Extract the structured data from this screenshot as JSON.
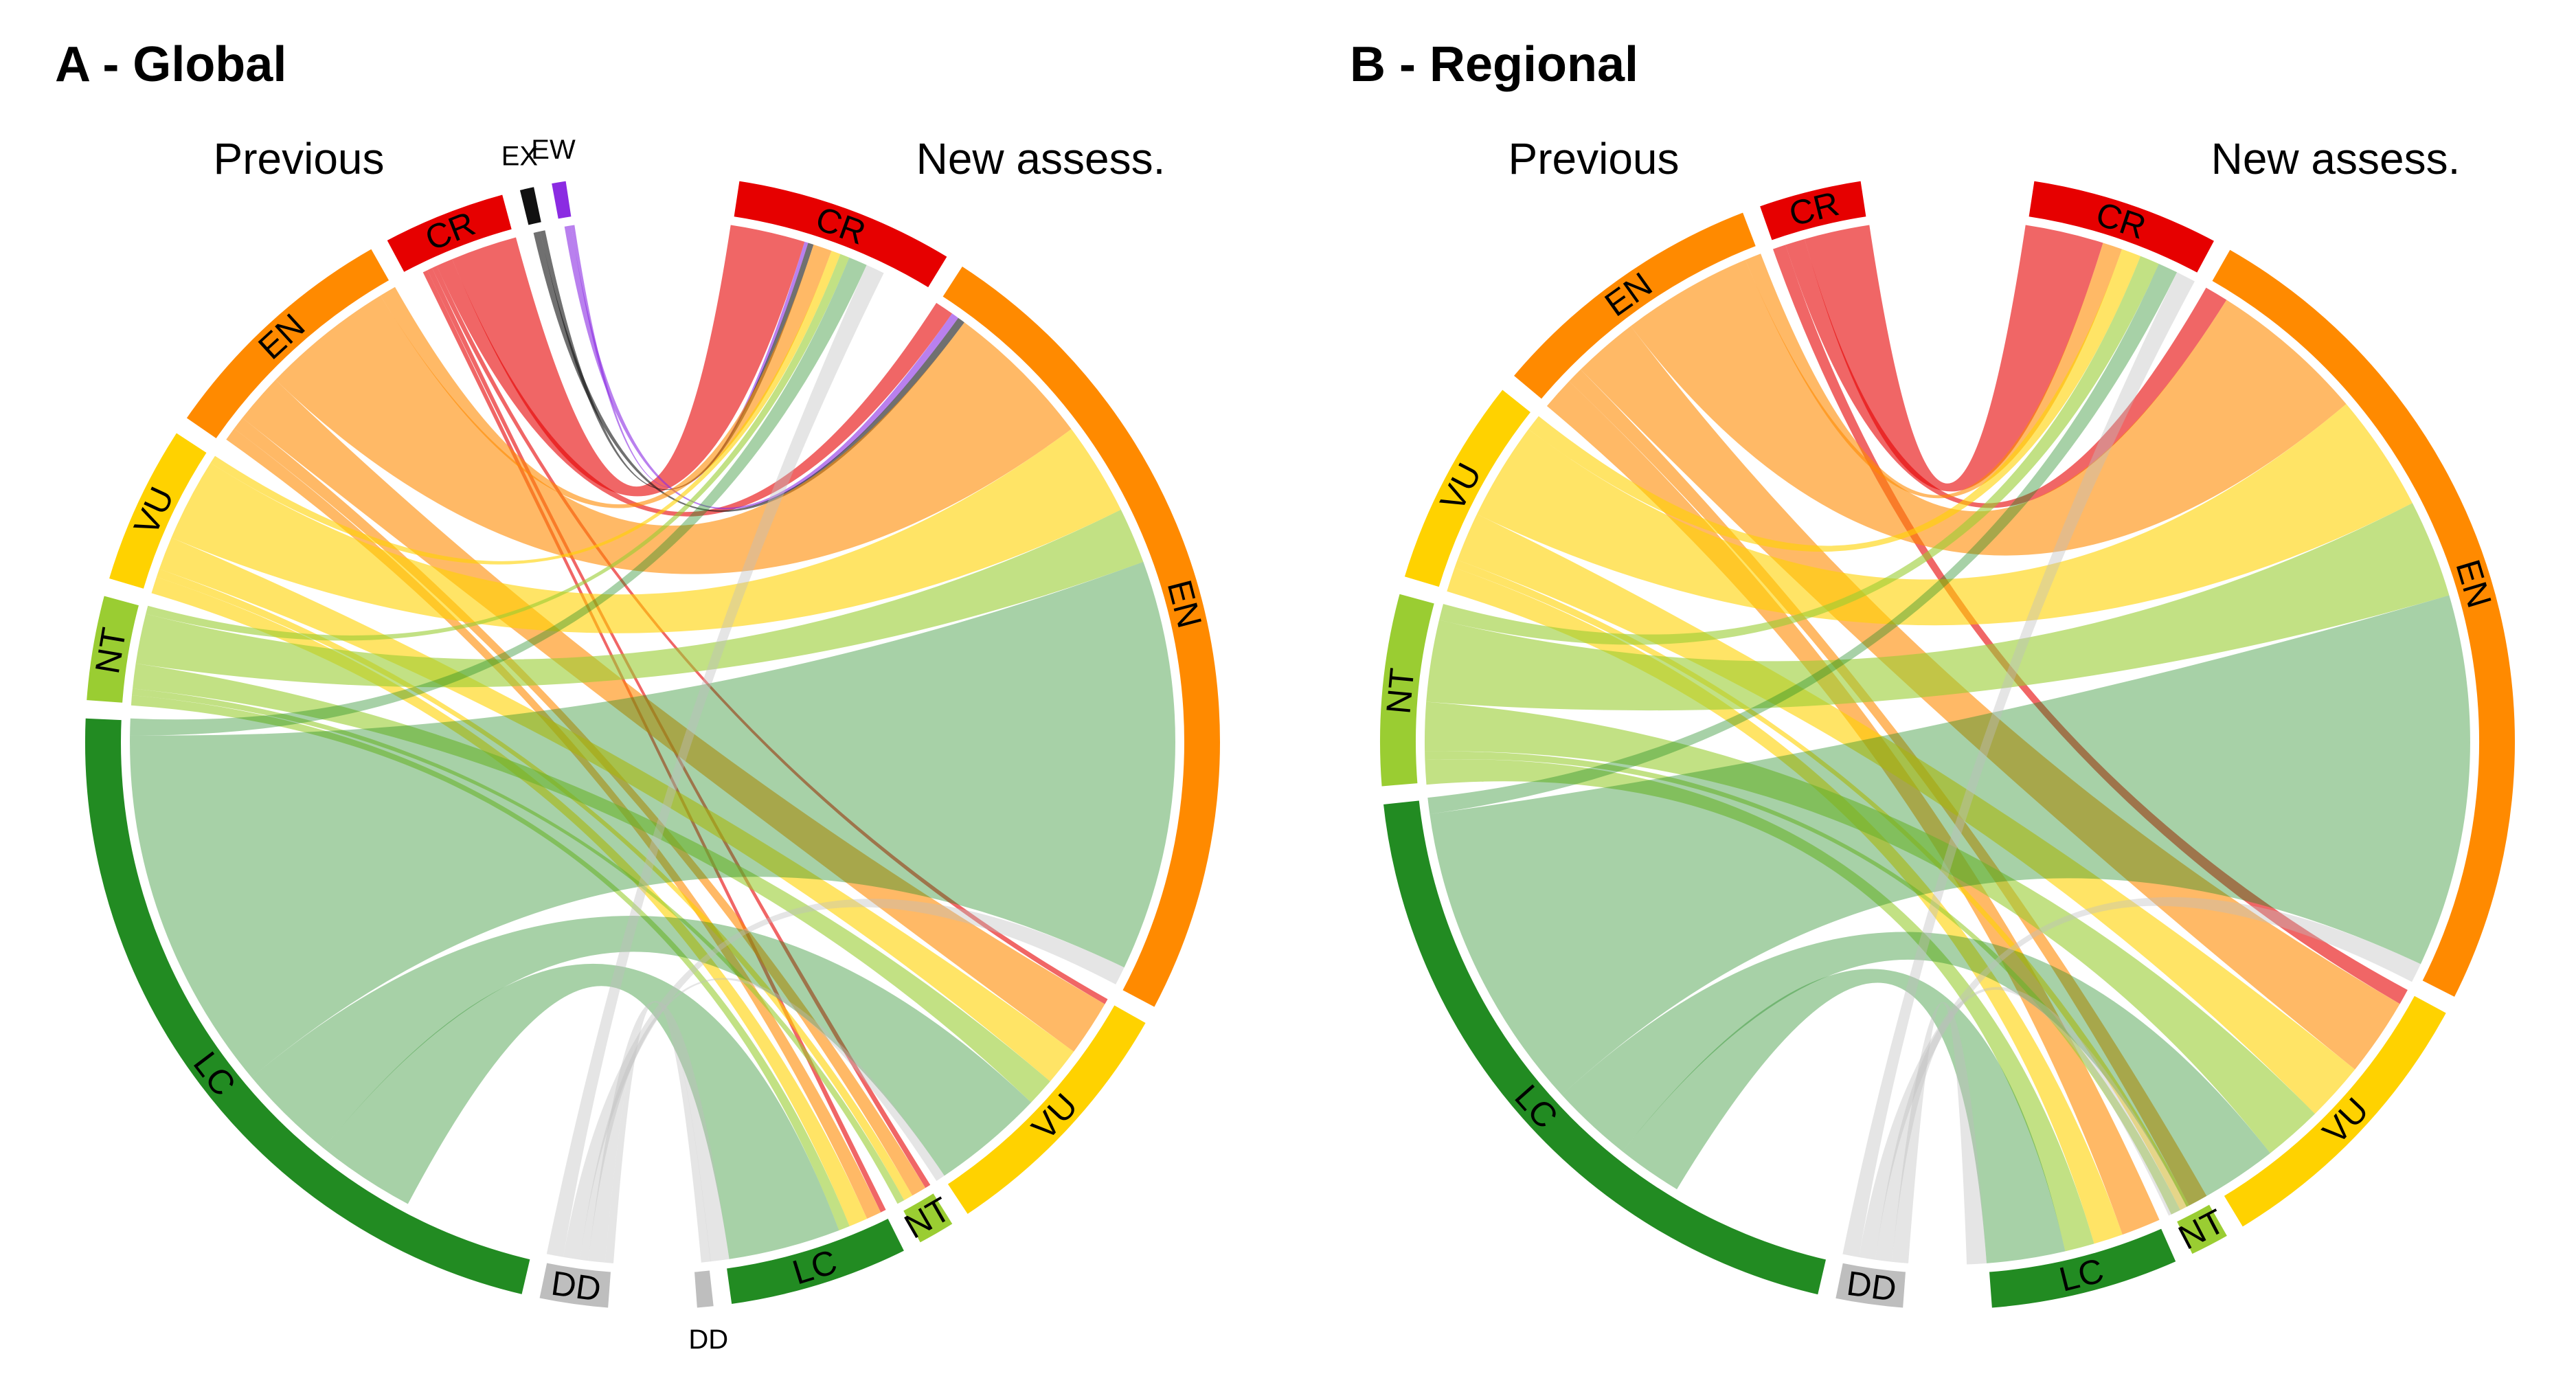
{
  "panels": [
    {
      "title": "A - Global",
      "prev_label": "Previous",
      "new_label": "New assess.",
      "prev_sectors": [
        {
          "code": "EW",
          "color": "#8B2BE2",
          "size": 1
        },
        {
          "code": "EX",
          "color": "#111111",
          "size": 1
        },
        {
          "code": "CR",
          "color": "#E60000",
          "size": 7
        },
        {
          "code": "EN",
          "color": "#FF8A00",
          "size": 14
        },
        {
          "code": "VU",
          "color": "#FFD200",
          "size": 9
        },
        {
          "code": "NT",
          "color": "#9ACD32",
          "size": 6
        },
        {
          "code": "LC",
          "color": "#228B22",
          "size": 43
        },
        {
          "code": "DD",
          "color": "#BEBEBE",
          "size": 4
        }
      ],
      "new_sectors": [
        {
          "code": "CR",
          "color": "#E60000",
          "size": 11
        },
        {
          "code": "EN",
          "color": "#FF8A00",
          "size": 41
        },
        {
          "code": "VU",
          "color": "#FFD200",
          "size": 13
        },
        {
          "code": "NT",
          "color": "#9ACD32",
          "size": 2
        },
        {
          "code": "LC",
          "color": "#228B22",
          "size": 9
        },
        {
          "code": "DD",
          "color": "#BEBEBE",
          "size": 1
        }
      ],
      "flows": [
        {
          "from": "CR",
          "to": "CR",
          "value": 4
        },
        {
          "from": "CR",
          "to": "EN",
          "value": 1
        },
        {
          "from": "CR",
          "to": "VU",
          "value": 0.3
        },
        {
          "from": "CR",
          "to": "NT",
          "value": 0.3
        },
        {
          "from": "CR",
          "to": "LC",
          "value": 0.3
        },
        {
          "from": "EW",
          "to": "CR",
          "value": 0.2
        },
        {
          "from": "EW",
          "to": "EN",
          "value": 0.4
        },
        {
          "from": "EX",
          "to": "CR",
          "value": 0.3
        },
        {
          "from": "EX",
          "to": "EN",
          "value": 0.4
        },
        {
          "from": "EN",
          "to": "CR",
          "value": 1
        },
        {
          "from": "EN",
          "to": "EN",
          "value": 8
        },
        {
          "from": "EN",
          "to": "VU",
          "value": 3
        },
        {
          "from": "EN",
          "to": "NT",
          "value": 0.8
        },
        {
          "from": "EN",
          "to": "LC",
          "value": 0.8
        },
        {
          "from": "VU",
          "to": "CR",
          "value": 0.5
        },
        {
          "from": "VU",
          "to": "EN",
          "value": 5
        },
        {
          "from": "VU",
          "to": "VU",
          "value": 2
        },
        {
          "from": "VU",
          "to": "NT",
          "value": 0.5
        },
        {
          "from": "VU",
          "to": "LC",
          "value": 1
        },
        {
          "from": "NT",
          "to": "CR",
          "value": 0.5
        },
        {
          "from": "NT",
          "to": "EN",
          "value": 3
        },
        {
          "from": "NT",
          "to": "VU",
          "value": 1.5
        },
        {
          "from": "NT",
          "to": "NT",
          "value": 0.4
        },
        {
          "from": "NT",
          "to": "LC",
          "value": 0.6
        },
        {
          "from": "LC",
          "to": "CR",
          "value": 1
        },
        {
          "from": "LC",
          "to": "EN",
          "value": 22
        },
        {
          "from": "LC",
          "to": "VU",
          "value": 6
        },
        {
          "from": "LC",
          "to": "LC",
          "value": 6
        },
        {
          "from": "DD",
          "to": "CR",
          "value": 1
        },
        {
          "from": "DD",
          "to": "EN",
          "value": 1
        },
        {
          "from": "DD",
          "to": "VU",
          "value": 0.5
        },
        {
          "from": "DD",
          "to": "LC",
          "value": 1
        },
        {
          "from": "DD",
          "to": "DD",
          "value": 0.5
        }
      ]
    },
    {
      "title": "B - Regional",
      "prev_label": "Previous",
      "new_label": "New assess.",
      "prev_sectors": [
        {
          "code": "CR",
          "color": "#E60000",
          "size": 6
        },
        {
          "code": "EN",
          "color": "#FF8A00",
          "size": 16
        },
        {
          "code": "VU",
          "color": "#FFD200",
          "size": 12
        },
        {
          "code": "NT",
          "color": "#9ACD32",
          "size": 11
        },
        {
          "code": "LC",
          "color": "#228B22",
          "size": 39
        },
        {
          "code": "DD",
          "color": "#BEBEBE",
          "size": 4
        }
      ],
      "new_sectors": [
        {
          "code": "CR",
          "color": "#E60000",
          "size": 9
        },
        {
          "code": "EN",
          "color": "#FF8A00",
          "size": 40
        },
        {
          "code": "VU",
          "color": "#FFD200",
          "size": 14
        },
        {
          "code": "NT",
          "color": "#9ACD32",
          "size": 2
        },
        {
          "code": "LC",
          "color": "#228B22",
          "size": 9
        }
      ],
      "flows": [
        {
          "from": "CR",
          "to": "CR",
          "value": 4
        },
        {
          "from": "CR",
          "to": "EN",
          "value": 1.2
        },
        {
          "from": "CR",
          "to": "VU",
          "value": 0.8
        },
        {
          "from": "EN",
          "to": "CR",
          "value": 1
        },
        {
          "from": "EN",
          "to": "EN",
          "value": 8
        },
        {
          "from": "EN",
          "to": "VU",
          "value": 4
        },
        {
          "from": "EN",
          "to": "NT",
          "value": 1
        },
        {
          "from": "EN",
          "to": "LC",
          "value": 2
        },
        {
          "from": "VU",
          "to": "CR",
          "value": 1
        },
        {
          "from": "VU",
          "to": "EN",
          "value": 6
        },
        {
          "from": "VU",
          "to": "VU",
          "value": 3
        },
        {
          "from": "VU",
          "to": "NT",
          "value": 0.5
        },
        {
          "from": "VU",
          "to": "LC",
          "value": 1.5
        },
        {
          "from": "NT",
          "to": "CR",
          "value": 1
        },
        {
          "from": "NT",
          "to": "EN",
          "value": 5
        },
        {
          "from": "NT",
          "to": "VU",
          "value": 3
        },
        {
          "from": "NT",
          "to": "NT",
          "value": 0.5
        },
        {
          "from": "NT",
          "to": "LC",
          "value": 1.5
        },
        {
          "from": "LC",
          "to": "CR",
          "value": 1
        },
        {
          "from": "LC",
          "to": "EN",
          "value": 19
        },
        {
          "from": "LC",
          "to": "VU",
          "value": 5
        },
        {
          "from": "LC",
          "to": "LC",
          "value": 4
        },
        {
          "from": "DD",
          "to": "CR",
          "value": 1
        },
        {
          "from": "DD",
          "to": "EN",
          "value": 1
        },
        {
          "from": "DD",
          "to": "VU",
          "value": 1
        },
        {
          "from": "DD",
          "to": "LC",
          "value": 1
        }
      ]
    }
  ]
}
